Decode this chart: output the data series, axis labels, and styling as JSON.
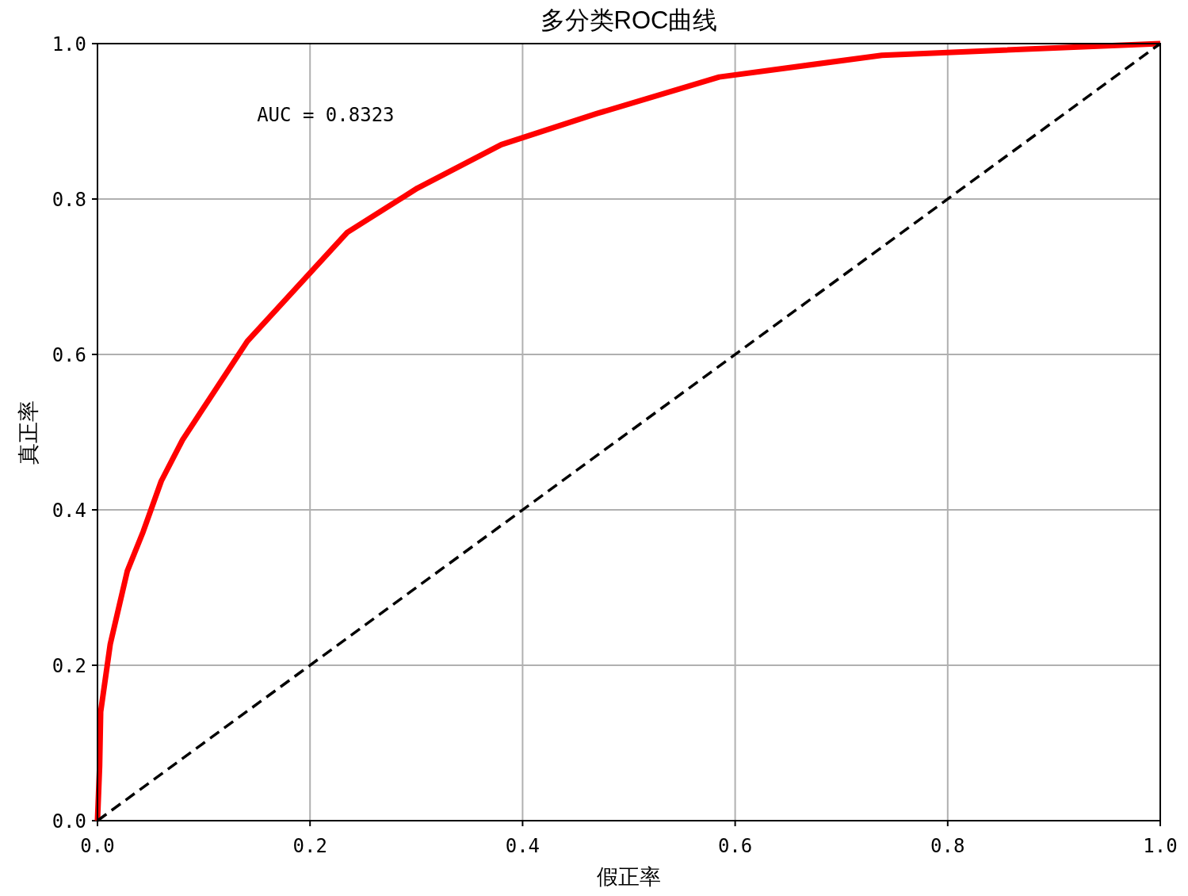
{
  "chart_data": {
    "type": "line",
    "title": "多分类ROC曲线",
    "xlabel": "假正率",
    "ylabel": "真正率",
    "annotations": [
      "AUC = 0.8323"
    ],
    "xlim": [
      0,
      1
    ],
    "ylim": [
      0,
      1
    ],
    "xticks": [
      {
        "value": 0,
        "label": "0.0"
      },
      0.2,
      0.4,
      0.6,
      0.8,
      {
        "value": 1,
        "label": "1.0"
      }
    ],
    "yticks": [
      {
        "value": 0,
        "label": "0.0"
      },
      0.2,
      0.4,
      0.6,
      0.8,
      {
        "value": 1,
        "label": "1.0"
      }
    ],
    "grid": true,
    "series": [
      {
        "color": "#ff0000",
        "line_style": "solid",
        "x": [
          0,
          0.002,
          0.003,
          0.012,
          0.028,
          0.043,
          0.06,
          0.08,
          0.141,
          0.235,
          0.301,
          0.38,
          0.47,
          0.585,
          0.738,
          1
        ],
        "values": [
          0,
          0.07,
          0.14,
          0.227,
          0.321,
          0.372,
          0.437,
          0.49,
          0.617,
          0.757,
          0.814,
          0.87,
          0.91,
          0.957,
          0.985,
          1
        ]
      },
      {
        "color": "#000000",
        "line_style": "dashed",
        "x": [
          0,
          1
        ],
        "values": [
          0,
          1
        ]
      }
    ]
  }
}
